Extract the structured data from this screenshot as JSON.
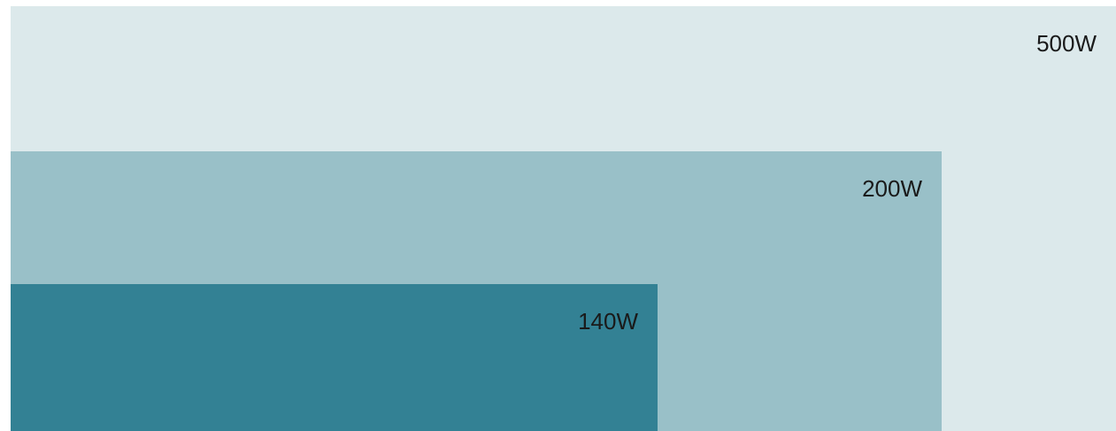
{
  "chart_data": {
    "type": "area",
    "title": "",
    "xlabel": "",
    "ylabel": "",
    "series": [
      {
        "label": "500W",
        "value": 500,
        "color": "#dce9eb"
      },
      {
        "label": "200W",
        "value": 200,
        "color": "#99c0c8"
      },
      {
        "label": "140W",
        "value": 140,
        "color": "#338194"
      }
    ]
  }
}
